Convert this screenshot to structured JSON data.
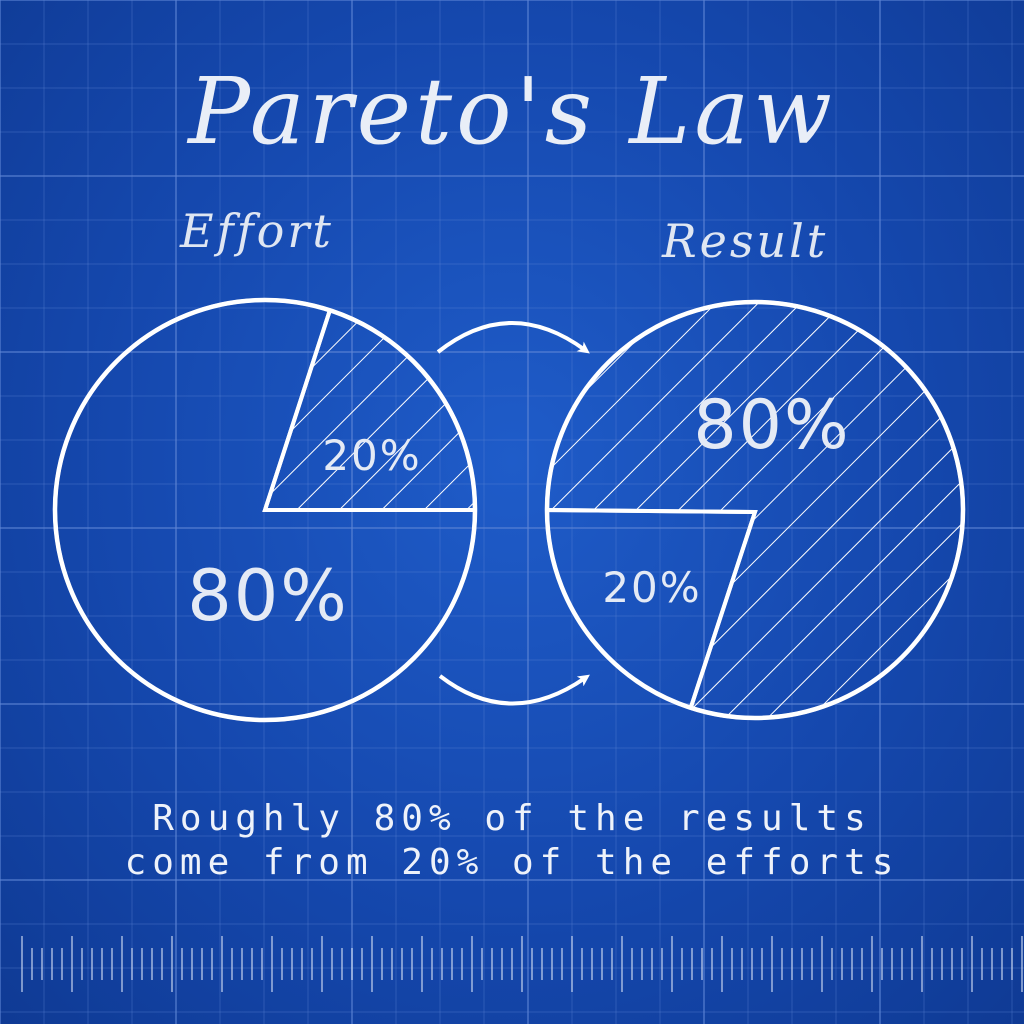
{
  "title": "Pareto's Law",
  "chart_data": [
    {
      "type": "pie",
      "title": "Effort",
      "slices": [
        {
          "label": "20%",
          "value": 20,
          "hatched": true
        },
        {
          "label": "80%",
          "value": 80,
          "hatched": false
        }
      ]
    },
    {
      "type": "pie",
      "title": "Result",
      "slices": [
        {
          "label": "80%",
          "value": 80,
          "hatched": true
        },
        {
          "label": "20%",
          "value": 20,
          "hatched": false
        }
      ]
    }
  ],
  "caption": {
    "line1": "Roughly 80% of the results",
    "line2": "come from 20% of the efforts"
  },
  "colors": {
    "background": "#1548ae",
    "grid": "#5f86d6",
    "stroke": "#ffffff"
  }
}
